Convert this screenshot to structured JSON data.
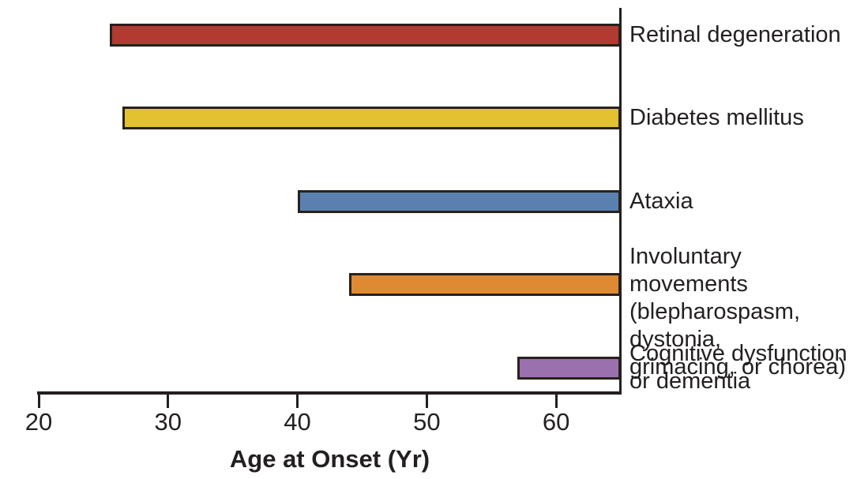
{
  "chart_data": {
    "type": "bar",
    "orientation": "horizontal-range",
    "title": "",
    "xlabel": "Age at Onset (Yr)",
    "x_min": 20,
    "x_max": 65,
    "x_ticks": [
      20,
      30,
      40,
      50,
      60
    ],
    "right_boundary_age": 65,
    "grid": false,
    "legend": false,
    "bars": [
      {
        "name": "retinal-degeneration",
        "label": "Retinal degeneration",
        "onset_age": 25.5,
        "end_age": 65,
        "color": "#b23a31"
      },
      {
        "name": "diabetes-mellitus",
        "label": "Diabetes mellitus",
        "onset_age": 26.5,
        "end_age": 65,
        "color": "#e2c22f"
      },
      {
        "name": "ataxia",
        "label": "Ataxia",
        "onset_age": 40,
        "end_age": 65,
        "color": "#5a80b0"
      },
      {
        "name": "involuntary-movements",
        "label": "Involuntary movements\n(blepharospasm, dystonia,\ngrimacing, or chorea)",
        "onset_age": 44,
        "end_age": 65,
        "color": "#dd8a33"
      },
      {
        "name": "cognitive-dysfunction",
        "label": "Cognitive dysfunction\nor dementia",
        "onset_age": 57,
        "end_age": 65,
        "color": "#9b70ae"
      }
    ],
    "colors": {
      "axis": "#231f20",
      "text": "#231f20",
      "bar_border": "#27211d"
    }
  }
}
